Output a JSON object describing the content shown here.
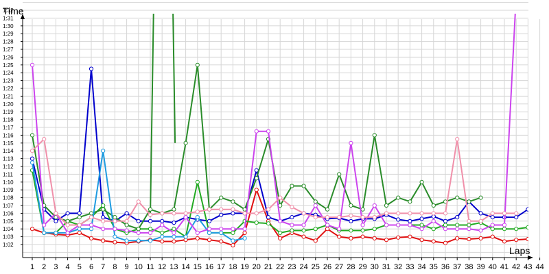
{
  "chart_data": {
    "type": "line",
    "xlabel": "Laps",
    "ylabel": "Time",
    "x": [
      1,
      2,
      3,
      4,
      5,
      6,
      7,
      8,
      9,
      10,
      11,
      12,
      13,
      14,
      15,
      16,
      17,
      18,
      19,
      20,
      21,
      22,
      23,
      24,
      25,
      26,
      27,
      28,
      29,
      30,
      31,
      32,
      33,
      34,
      35,
      36,
      37,
      38,
      39,
      40,
      41,
      42,
      43,
      44
    ],
    "x_ticks": [
      "1",
      "2",
      "3",
      "4",
      "5",
      "6",
      "7",
      "8",
      "9",
      "10",
      "11",
      "12",
      "13",
      "14",
      "15",
      "16",
      "17",
      "18",
      "19",
      "20",
      "21",
      "22",
      "23",
      "24",
      "25",
      "26",
      "27",
      "28",
      "29",
      "30",
      "31",
      "32",
      "33",
      "34",
      "35",
      "36",
      "37",
      "38",
      "39",
      "40",
      "41",
      "42",
      "43",
      "44"
    ],
    "y_ticks": [
      "1:02",
      "1:03",
      "1:04",
      "1:05",
      "1:06",
      "1:07",
      "1:08",
      "1:09",
      "1:10",
      "1:11",
      "1:12",
      "1:13",
      "1:14",
      "1:15",
      "1:16",
      "1:17",
      "1:18",
      "1:19",
      "1:20",
      "1:21",
      "1:22",
      "1:23",
      "1:24",
      "1:25",
      "1:26",
      "1:27",
      "1:28",
      "1:29",
      "1:30",
      "1:31",
      "1:32"
    ],
    "ylim_seconds": [
      61,
      93.5
    ],
    "grid": true,
    "series": [
      {
        "color": "#e01010",
        "values": [
          64,
          63.5,
          63.3,
          63.2,
          63.5,
          62.8,
          62.5,
          62.3,
          62.2,
          62.4,
          62.6,
          62.4,
          62.4,
          62.6,
          62.8,
          62.6,
          62.4,
          61.9,
          63.5,
          69,
          65,
          62.8,
          63.5,
          63,
          62.5,
          64,
          63,
          62.8,
          63,
          62.8,
          62.6,
          62.9,
          63,
          62.6,
          62.4,
          62.2,
          62.8,
          62.7,
          62.8,
          63,
          62.4,
          62.6,
          62.7,
          62.6
        ]
      },
      {
        "color": "#0000cc",
        "values": [
          73,
          66.5,
          65,
          66,
          66,
          84.5,
          65.5,
          65,
          66,
          65,
          65,
          65,
          64.8,
          65.5,
          65.2,
          65,
          65.8,
          66,
          66,
          71.5,
          65.5,
          65,
          65.5,
          66,
          65.8,
          65.3,
          65.4,
          65,
          65.3,
          65.3,
          65.8,
          65.2,
          65,
          65.3,
          65.6,
          65,
          65.5,
          67.5,
          66,
          65.5,
          65.5,
          65.5,
          66.5,
          null
        ]
      },
      {
        "color": "#22aa22",
        "values": [
          71.5,
          63.5,
          63.5,
          65,
          64.5,
          65.5,
          67,
          64,
          63.5,
          64,
          64,
          63.5,
          64,
          63,
          70,
          63.5,
          63.5,
          63.5,
          65,
          64.8,
          64.7,
          63.5,
          63.8,
          63.8,
          64,
          64.5,
          63.8,
          63.8,
          63.8,
          64,
          64.5,
          64.5,
          64.5,
          64.5,
          64,
          64.5,
          64.5,
          64.5,
          64.8,
          64,
          64,
          64,
          64.2,
          64.5
        ]
      },
      {
        "color": "#2a8c2a",
        "values": [
          76,
          67,
          65.5,
          65,
          65.5,
          66,
          66.5,
          65.5,
          64.5,
          64,
          66.5,
          66,
          66.5,
          75,
          85,
          66.5,
          68,
          67.5,
          66.5,
          70.5,
          75.5,
          67,
          69.5,
          69.5,
          67.5,
          66.5,
          71,
          67,
          66.5,
          76,
          67,
          68,
          67.5,
          70,
          67,
          67.5,
          68,
          67.5,
          68,
          null,
          null,
          null,
          null,
          null
        ]
      },
      {
        "color": "#1e9be0",
        "values": [
          72.5,
          63.5,
          63.5,
          63.5,
          64,
          64,
          74,
          63,
          62.5,
          62.5,
          62.5,
          63,
          63,
          63,
          65.5,
          63.5,
          63.5,
          62.5,
          62.8,
          null,
          null,
          null,
          null,
          null,
          null,
          null,
          null,
          null,
          null,
          null,
          null,
          null,
          null,
          null,
          null,
          null,
          null,
          null,
          null,
          null,
          null,
          null,
          null,
          null
        ]
      },
      {
        "color": "#cc44ee",
        "values": [
          85,
          64.5,
          66,
          63.5,
          64.5,
          64.5,
          64,
          64,
          63.8,
          63.5,
          63.5,
          64.5,
          63.5,
          65.5,
          63.5,
          64,
          64,
          64,
          64,
          76.5,
          76.5,
          65,
          64.5,
          64.5,
          67,
          64.5,
          64,
          75,
          64.5,
          67,
          64.5,
          64.5,
          64.5,
          64,
          65,
          64,
          64,
          64,
          63.8,
          64.5,
          64.5,
          94,
          null,
          null
        ]
      },
      {
        "color": "#f090aa",
        "values": [
          74,
          75.5,
          66,
          64.5,
          64.5,
          65.5,
          65,
          65,
          65,
          67.5,
          65.8,
          66,
          66,
          66,
          66.2,
          66.5,
          66.5,
          66.5,
          66,
          66,
          66.5,
          68,
          66.8,
          66,
          65.5,
          65.5,
          65.5,
          65.7,
          65.5,
          65.5,
          66,
          66,
          66,
          66,
          66,
          66,
          75.5,
          65,
          65,
          66,
          66,
          66,
          null,
          null
        ]
      }
    ],
    "spikes": [
      {
        "color": "#2a8c2a",
        "points": [
          [
            11,
            65.5
          ],
          [
            11.3,
            94
          ],
          [
            12.9,
            94
          ],
          [
            13.1,
            75
          ]
        ]
      }
    ]
  }
}
